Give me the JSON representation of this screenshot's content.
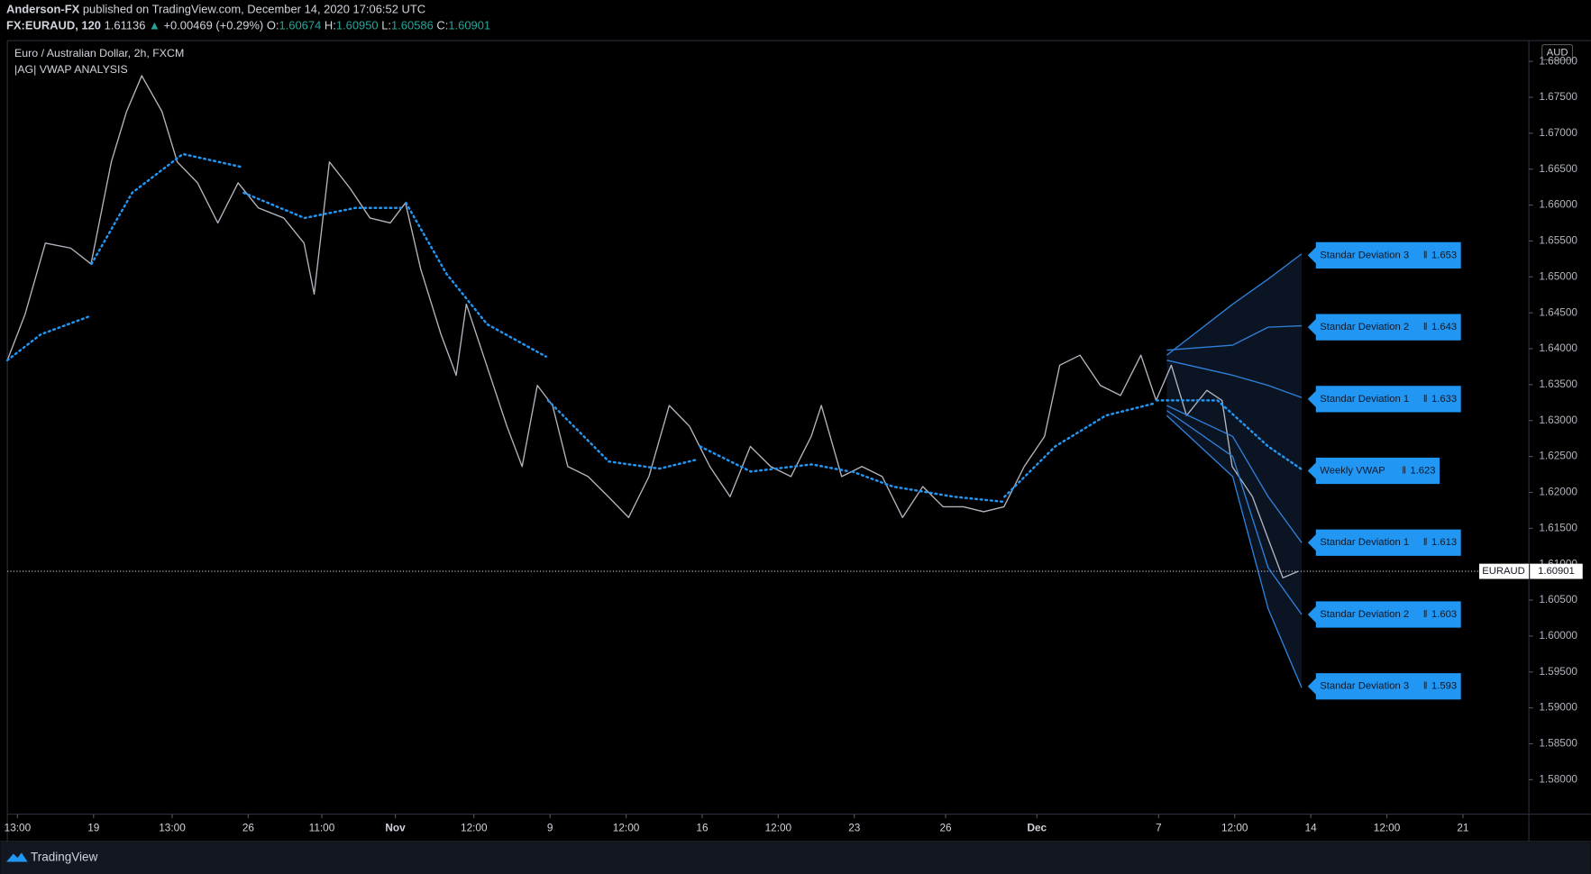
{
  "chart_data": {
    "type": "line",
    "header": {
      "author": "Anderson-FX",
      "published": "published on TradingView.com, December 14, 2020 17:06:52 UTC",
      "symbol": "FX:EURAUD, 120",
      "price": "1.61136",
      "arrow": "▲",
      "change": "+0.00469 (+0.29%)",
      "o_label": "O:",
      "o": "1.60674",
      "h_label": "H:",
      "h": "1.60950",
      "l_label": "L:",
      "l": "1.60586",
      "c_label": "C:",
      "c": "1.60901"
    },
    "title": "Euro / Australian Dollar, 2h, FXCM",
    "subtitle": "|AG| VWAP ANALYSIS",
    "currency": "AUD",
    "brand": "TradingView",
    "symbol_label": "EURAUD",
    "last_price": 1.60901,
    "label_separator": "‖",
    "xlim": [
      0,
      600
    ],
    "xticks": [
      {
        "value": 4,
        "label": "13:00"
      },
      {
        "value": 34,
        "label": "19"
      },
      {
        "value": 65,
        "label": "13:00"
      },
      {
        "value": 95,
        "label": "26"
      },
      {
        "value": 124,
        "label": "11:00"
      },
      {
        "value": 153,
        "label": "Nov"
      },
      {
        "value": 184,
        "label": "12:00"
      },
      {
        "value": 214,
        "label": "9"
      },
      {
        "value": 244,
        "label": "12:00"
      },
      {
        "value": 274,
        "label": "16"
      },
      {
        "value": 304,
        "label": "12:00"
      },
      {
        "value": 334,
        "label": "23"
      },
      {
        "value": 370,
        "label": "26"
      },
      {
        "value": 406,
        "label": "Dec"
      },
      {
        "value": 454,
        "label": "7"
      },
      {
        "value": 484,
        "label": "12:00"
      },
      {
        "value": 514,
        "label": "14"
      },
      {
        "value": 544,
        "label": "12:00"
      },
      {
        "value": 574,
        "label": "21"
      }
    ],
    "ylim": [
      1.5752,
      1.6829
    ],
    "yticks": [
      {
        "value": 1.58,
        "label": "1.58000"
      },
      {
        "value": 1.585,
        "label": "1.58500"
      },
      {
        "value": 1.59,
        "label": "1.59000"
      },
      {
        "value": 1.595,
        "label": "1.59500"
      },
      {
        "value": 1.6,
        "label": "1.60000"
      },
      {
        "value": 1.605,
        "label": "1.60500"
      },
      {
        "value": 1.61,
        "label": "1.61000"
      },
      {
        "value": 1.615,
        "label": "1.61500"
      },
      {
        "value": 1.62,
        "label": "1.62000"
      },
      {
        "value": 1.625,
        "label": "1.62500"
      },
      {
        "value": 1.63,
        "label": "1.63000"
      },
      {
        "value": 1.635,
        "label": "1.63500"
      },
      {
        "value": 1.64,
        "label": "1.64000"
      },
      {
        "value": 1.645,
        "label": "1.64500"
      },
      {
        "value": 1.65,
        "label": "1.65000"
      },
      {
        "value": 1.655,
        "label": "1.65500"
      },
      {
        "value": 1.66,
        "label": "1.66000"
      },
      {
        "value": 1.665,
        "label": "1.66500"
      },
      {
        "value": 1.67,
        "label": "1.67000"
      },
      {
        "value": 1.675,
        "label": "1.67500"
      },
      {
        "value": 1.68,
        "label": "1.68000"
      }
    ],
    "series": [
      {
        "name": "EURAUD",
        "color": "#b2b5be",
        "style": "solid",
        "x": [
          0,
          7,
          15,
          25,
          33,
          41,
          47,
          53,
          61,
          67,
          75,
          83,
          91,
          99,
          109,
          117,
          121,
          127,
          135,
          143,
          151,
          157,
          163,
          171,
          177,
          181,
          189,
          197,
          203,
          209,
          215,
          221,
          229,
          237,
          245,
          253,
          261,
          269,
          277,
          285,
          293,
          301,
          309,
          317,
          321,
          329,
          337,
          345,
          353,
          361,
          369,
          377,
          385,
          393,
          401,
          409,
          415,
          423,
          431,
          439,
          447,
          453,
          459,
          465,
          473,
          479,
          483,
          491,
          497,
          503,
          509
        ],
        "values": [
          1.6384,
          1.6448,
          1.6547,
          1.654,
          1.6518,
          1.666,
          1.673,
          1.678,
          1.673,
          1.666,
          1.6631,
          1.6575,
          1.6631,
          1.6596,
          1.6582,
          1.6547,
          1.6476,
          1.666,
          1.6624,
          1.6582,
          1.6575,
          1.6603,
          1.6511,
          1.642,
          1.6363,
          1.6462,
          1.6377,
          1.6292,
          1.6236,
          1.6349,
          1.6321,
          1.6236,
          1.6222,
          1.6194,
          1.6165,
          1.6222,
          1.6321,
          1.6292,
          1.6236,
          1.6194,
          1.6264,
          1.6236,
          1.6222,
          1.6278,
          1.6321,
          1.6222,
          1.6236,
          1.6222,
          1.6165,
          1.6208,
          1.618,
          1.618,
          1.6173,
          1.618,
          1.6236,
          1.6278,
          1.6377,
          1.6391,
          1.6349,
          1.6335,
          1.6391,
          1.6328,
          1.6377,
          1.6307,
          1.6342,
          1.6328,
          1.6236,
          1.6194,
          1.6137,
          1.6081,
          1.609
        ]
      },
      {
        "name": "Weekly VWAP",
        "color": "#2196f3",
        "style": "dotted",
        "x": [
          0,
          13.2,
          32.4,
          null,
          33.2,
          49.2,
          69.2,
          92.4,
          null,
          93.2,
          117.2,
          137.2,
          155.2,
          null,
          157.2,
          173.2,
          189.2,
          212.4,
          null,
          213.2,
          237.2,
          257.2,
          272.4,
          null,
          273.2,
          293.2,
          317.2,
          332.4,
          null,
          333.2,
          349.2,
          373.2,
          392.4,
          null,
          393.2,
          413.2,
          433.2,
          452.4,
          null,
          453.2,
          477.2,
          497.2,
          510.4
        ],
        "values": [
          1.6384,
          1.642,
          1.6445,
          null,
          1.6518,
          1.6617,
          1.6671,
          1.6653,
          null,
          1.6617,
          1.6582,
          1.6596,
          1.6596,
          null,
          1.6603,
          1.6504,
          1.6434,
          1.6389,
          null,
          1.6328,
          1.6243,
          1.6233,
          1.6246,
          null,
          1.6264,
          1.6229,
          1.6239,
          1.6229,
          null,
          1.6229,
          1.6208,
          1.6194,
          1.6187,
          null,
          1.6194,
          1.6264,
          1.6307,
          1.6324,
          null,
          1.6328,
          1.6328,
          1.6264,
          1.6232
        ]
      },
      {
        "name": "Standar Deviation 3",
        "color": "#2f80d9",
        "style": "solid",
        "x": [
          457.2,
          483.2,
          497.2,
          510.4
        ],
        "values": [
          1.6391,
          1.6462,
          1.6497,
          1.6532
        ]
      },
      {
        "name": "Standar Deviation 2",
        "color": "#2f80d9",
        "style": "solid",
        "x": [
          457.2,
          483.2,
          497.2,
          510.4
        ],
        "values": [
          1.6398,
          1.6405,
          1.643,
          1.6432
        ]
      },
      {
        "name": "Standar Deviation 1",
        "color": "#2f80d9",
        "style": "solid",
        "x": [
          457.2,
          483.2,
          497.2,
          510.4
        ],
        "values": [
          1.6384,
          1.6363,
          1.6349,
          1.6332
        ]
      },
      {
        "name": "Standar Deviation 1",
        "color": "#2f80d9",
        "style": "solid",
        "x": [
          457.2,
          483.2,
          497.2,
          510.4
        ],
        "values": [
          1.6321,
          1.6278,
          1.6194,
          1.613
        ]
      },
      {
        "name": "Standar Deviation 2",
        "color": "#2f80d9",
        "style": "solid",
        "x": [
          457.2,
          483.2,
          497.2,
          510.4
        ],
        "values": [
          1.6314,
          1.625,
          1.6095,
          1.603
        ]
      },
      {
        "name": "Standar Deviation 3",
        "color": "#2f80d9",
        "style": "solid",
        "x": [
          457.2,
          483.2,
          497.2,
          510.4
        ],
        "values": [
          1.6307,
          1.6222,
          1.6038,
          1.5928
        ]
      }
    ],
    "band_fill": "#0b1422",
    "label_color": "#2196f3",
    "end_labels": [
      {
        "label": "Standar Deviation 3",
        "value": 1.653
      },
      {
        "label": "Standar Deviation 2",
        "value": 1.643
      },
      {
        "label": "Standar Deviation 1",
        "value": 1.633
      },
      {
        "label": "Weekly VWAP",
        "value": 1.623
      },
      {
        "label": "Standar Deviation 1",
        "value": 1.613
      },
      {
        "label": "Standar Deviation 2",
        "value": 1.603
      },
      {
        "label": "Standar Deviation 3",
        "value": 1.593
      }
    ]
  }
}
